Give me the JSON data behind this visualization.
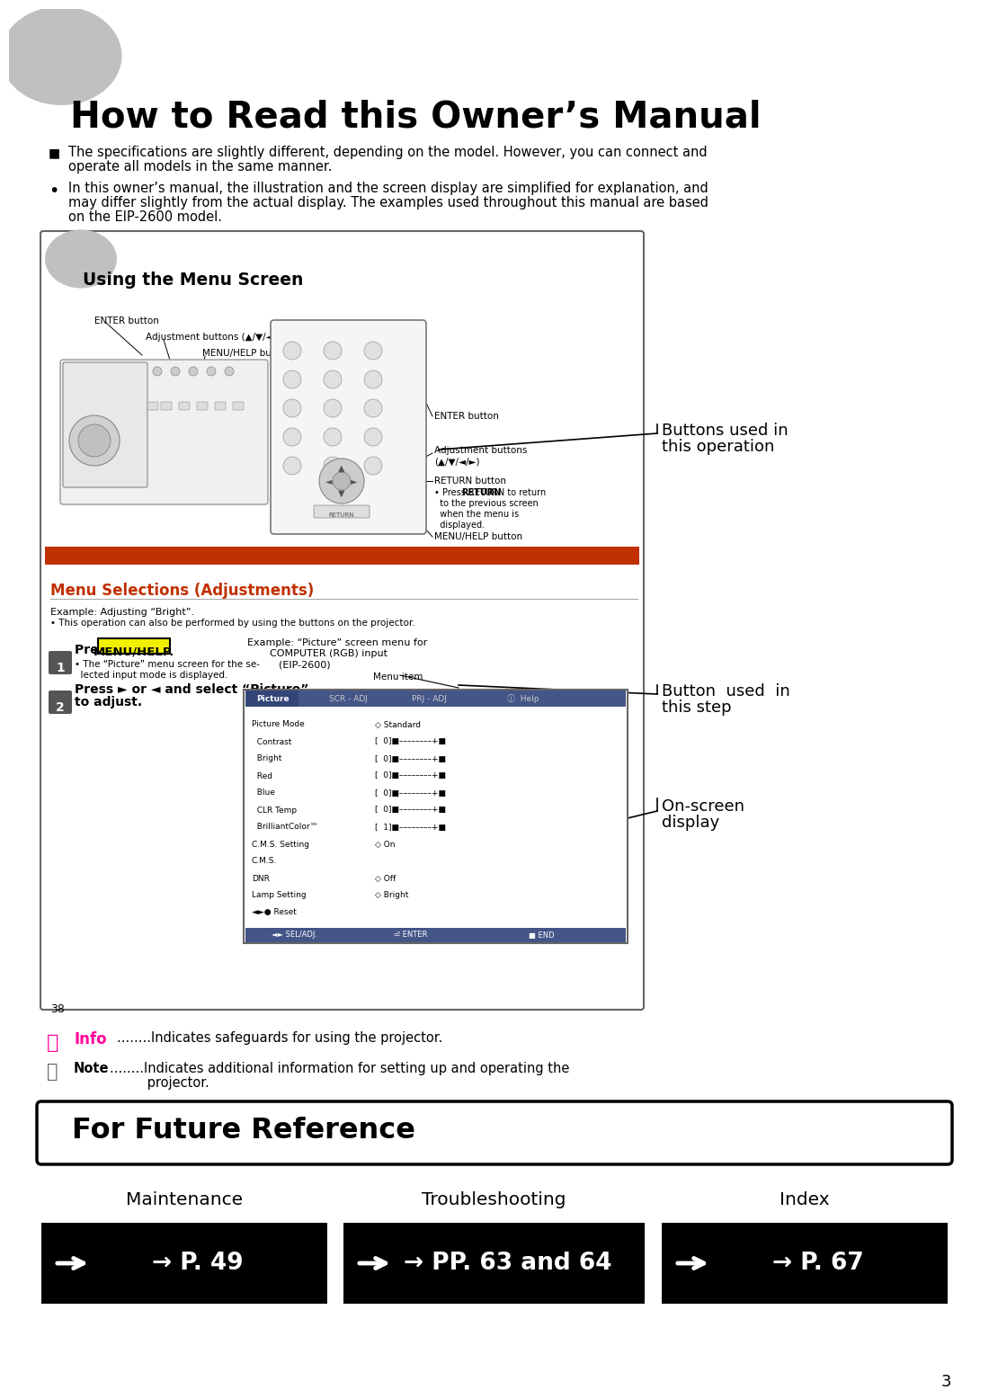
{
  "title": "How to Read this Owner’s Manual",
  "bg_color": "#ffffff",
  "bullet1_l1": "The specifications are slightly different, depending on the model. However, you can connect and",
  "bullet1_l2": "operate all models in the same manner.",
  "bullet2_l1": "In this owner’s manual, the illustration and the screen display are simplified for explanation, and",
  "bullet2_l2": "may differ slightly from the actual display. The examples used throughout this manual are based",
  "bullet2_l3": "on the EIP-2600 model.",
  "box_title": "Using the Menu Screen",
  "red_color": "#c03000",
  "menu_sel_title": "Menu Selections (Adjustments)",
  "example_l1": "Example: Adjusting “Bright”.",
  "example_l2": "• This operation can also be performed by using the buttons on the projector.",
  "step1a": "Press ",
  "step1b": "MENU/HELP.",
  "step1_sub1": "• The “Picture” menu screen for the se-",
  "step1_sub2": "  lected input mode is displayed.",
  "step2_l1": "Press ► or ◄ and select “Picture”",
  "step2_l2": "to adjust.",
  "ex_screen_l1": "Example: “Picture” screen menu for",
  "ex_screen_l2": "COMPUTER (RGB) input",
  "ex_screen_l3": "(EIP-2600)",
  "menu_item": "Menu item",
  "r_label1_l1": "Buttons used in",
  "r_label1_l2": "this operation",
  "r_label2_l1": "Button  used  in",
  "r_label2_l2": "this step",
  "r_label3_l1": "On-screen",
  "r_label3_l2": "display",
  "info_color": "#ff0099",
  "info_text": "Info",
  "info_desc": "........Indicates safeguards for using the projector.",
  "note_l1": "........Indicates additional information for setting up and operating the",
  "note_l2": "         projector.",
  "ffr_title": "For Future Reference",
  "col1_label": "Maintenance",
  "col2_label": "Troubleshooting",
  "col3_label": "Index",
  "col1_page": "→ P. 49",
  "col2_page": "→ PP. 63 and 64",
  "col3_page": "→ P. 67",
  "page_number": "3",
  "enter_btn": "ENTER button",
  "adj_btn": "Adjustment buttons (▲/▼/◄/►)",
  "menuhelp_btn": "MENU/HELP button",
  "enter_btn_r": "ENTER button",
  "adj_btn_r1": "Adjustment buttons",
  "adj_btn_r2": "(▲/▼/◄/►)",
  "return_btn": "RETURN button",
  "return_desc1": "• Press RETURN to return",
  "return_desc2": "  to the previous screen",
  "return_desc3": "  when the menu is",
  "return_desc4": "  displayed.",
  "menuhelp_btn_r": "MENU/HELP button",
  "page38": "38"
}
